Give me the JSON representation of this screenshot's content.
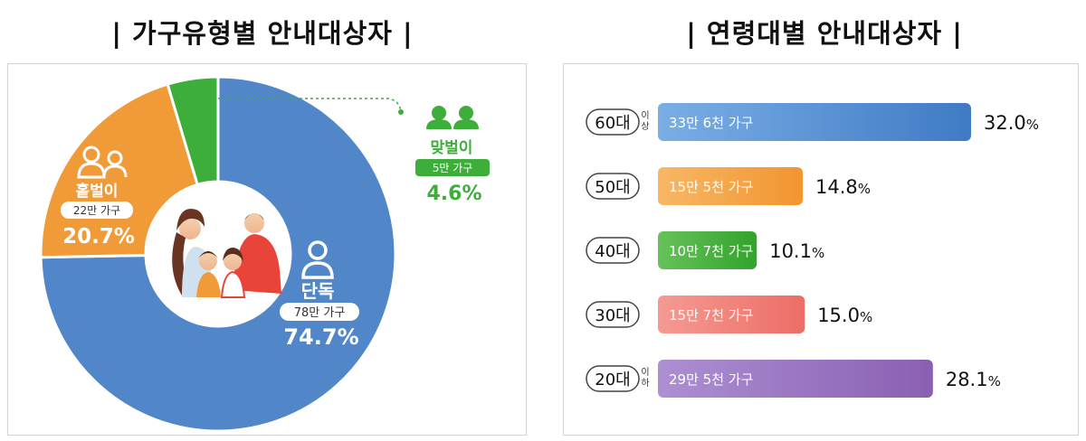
{
  "titles": {
    "household": "| 가구유형별 안내대상자 |",
    "age": "| 연령대별 안내대상자 |"
  },
  "chart_data": [
    {
      "type": "pie",
      "title": "가구유형별 안내대상자",
      "slices": [
        {
          "name": "단독",
          "count": "78만 가구",
          "value": 74.7,
          "label": "74.7%",
          "color": "#5186c9"
        },
        {
          "name": "홑벌이",
          "count": "22만 가구",
          "value": 20.7,
          "label": "20.7%",
          "color": "#f09a38"
        },
        {
          "name": "맞벌이",
          "count": "5만 가구",
          "value": 4.6,
          "label": "4.6%",
          "color": "#3eae3a"
        }
      ]
    },
    {
      "type": "bar",
      "title": "연령대별 안내대상자",
      "orientation": "horizontal",
      "xlim": [
        0,
        32.0
      ],
      "bars": [
        {
          "category": "60대",
          "suffix": [
            "이",
            "상"
          ],
          "count": "33만 6천 가구",
          "value": 32.0,
          "num": "32.0",
          "pct": "%",
          "color_start": "#7aaee6",
          "color_end": "#3f7bc4"
        },
        {
          "category": "50대",
          "suffix": [],
          "count": "15만 5천 가구",
          "value": 14.8,
          "num": "14.8",
          "pct": "%",
          "color_start": "#f8b766",
          "color_end": "#f1952f"
        },
        {
          "category": "40대",
          "suffix": [],
          "count": "10만 7천 가구",
          "value": 10.1,
          "num": "10.1",
          "pct": "%",
          "color_start": "#66c25a",
          "color_end": "#32a32c"
        },
        {
          "category": "30대",
          "suffix": [],
          "count": "15만 7천 가구",
          "value": 15.0,
          "num": "15.0",
          "pct": "%",
          "color_start": "#f59a92",
          "color_end": "#ec6e66"
        },
        {
          "category": "20대",
          "suffix": [
            "이",
            "하"
          ],
          "count": "29만 5천 가구",
          "value": 28.1,
          "num": "28.1",
          "pct": "%",
          "color_start": "#ad8fd2",
          "color_end": "#8a5fb3"
        }
      ]
    }
  ]
}
